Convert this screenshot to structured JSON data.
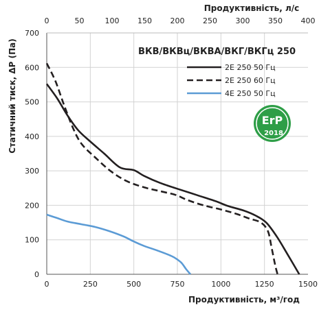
{
  "chart_data": {
    "type": "line",
    "title": "ВКВ/ВКВц/ВКВА/ВКГ/ВКГц 250",
    "xlabel": "Продуктивність, м³/год",
    "x2label": "Продуктивність, л/с",
    "ylabel": "Статичний тиск, ΔР (Па)",
    "xlim": [
      0,
      1500
    ],
    "x2lim": [
      0,
      400
    ],
    "ylim": [
      0,
      700
    ],
    "x_ticks": [
      0,
      250,
      500,
      750,
      1000,
      1250,
      1500
    ],
    "x2_ticks": [
      0,
      50,
      100,
      150,
      200,
      250,
      300,
      350,
      400
    ],
    "y_ticks": [
      0,
      100,
      200,
      300,
      400,
      500,
      600,
      700
    ],
    "grid": true,
    "legend_position": "top-right",
    "series": [
      {
        "name": "2Е 250 50 Гц",
        "color": "#231f20",
        "style": "solid",
        "points": [
          [
            0,
            552
          ],
          [
            60,
            510
          ],
          [
            120,
            460
          ],
          [
            180,
            418
          ],
          [
            250,
            385
          ],
          [
            330,
            350
          ],
          [
            420,
            310
          ],
          [
            500,
            302
          ],
          [
            560,
            285
          ],
          [
            650,
            265
          ],
          [
            750,
            248
          ],
          [
            860,
            230
          ],
          [
            970,
            212
          ],
          [
            1040,
            198
          ],
          [
            1130,
            185
          ],
          [
            1200,
            170
          ],
          [
            1260,
            150
          ],
          [
            1320,
            110
          ],
          [
            1380,
            60
          ],
          [
            1450,
            0
          ]
        ]
      },
      {
        "name": "2Е 250 60 Гц",
        "color": "#231f20",
        "style": "dashed",
        "points": [
          [
            0,
            612
          ],
          [
            50,
            560
          ],
          [
            100,
            490
          ],
          [
            150,
            425
          ],
          [
            200,
            378
          ],
          [
            280,
            338
          ],
          [
            370,
            298
          ],
          [
            460,
            270
          ],
          [
            560,
            252
          ],
          [
            660,
            240
          ],
          [
            740,
            230
          ],
          [
            810,
            215
          ],
          [
            900,
            200
          ],
          [
            1000,
            188
          ],
          [
            1090,
            175
          ],
          [
            1160,
            162
          ],
          [
            1230,
            150
          ],
          [
            1270,
            125
          ],
          [
            1290,
            80
          ],
          [
            1310,
            30
          ],
          [
            1325,
            0
          ]
        ]
      },
      {
        "name": "4Е 250 50 Гц",
        "color": "#5b9bd5",
        "style": "solid",
        "points": [
          [
            0,
            173
          ],
          [
            60,
            163
          ],
          [
            120,
            153
          ],
          [
            200,
            145
          ],
          [
            280,
            137
          ],
          [
            360,
            125
          ],
          [
            440,
            110
          ],
          [
            500,
            95
          ],
          [
            560,
            82
          ],
          [
            640,
            68
          ],
          [
            720,
            52
          ],
          [
            770,
            35
          ],
          [
            800,
            15
          ],
          [
            825,
            0
          ]
        ]
      }
    ]
  },
  "badge": {
    "text": "ErP",
    "year": "2018",
    "color": "#2e9e47",
    "icon": "erp-2018-badge-icon"
  }
}
